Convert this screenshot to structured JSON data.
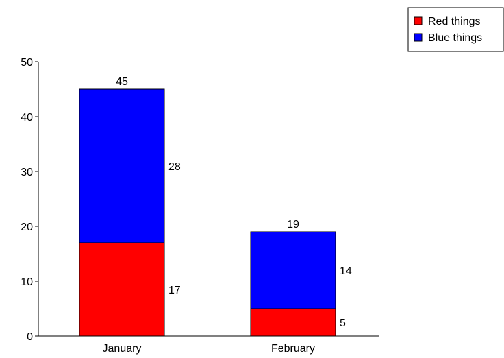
{
  "chart_data": {
    "type": "bar",
    "stacked": true,
    "categories": [
      "January",
      "February"
    ],
    "series": [
      {
        "name": "Red things",
        "values": [
          17,
          5
        ],
        "color": "#ff0000"
      },
      {
        "name": "Blue things",
        "values": [
          28,
          14
        ],
        "color": "#0000ff"
      }
    ],
    "totals": [
      45,
      19
    ],
    "ylim": [
      0,
      50
    ],
    "yticks": [
      "0",
      "10",
      "20",
      "30",
      "40",
      "50"
    ],
    "title": "",
    "xlabel": "",
    "ylabel": "",
    "grid": false,
    "legend_position": "top-right"
  }
}
